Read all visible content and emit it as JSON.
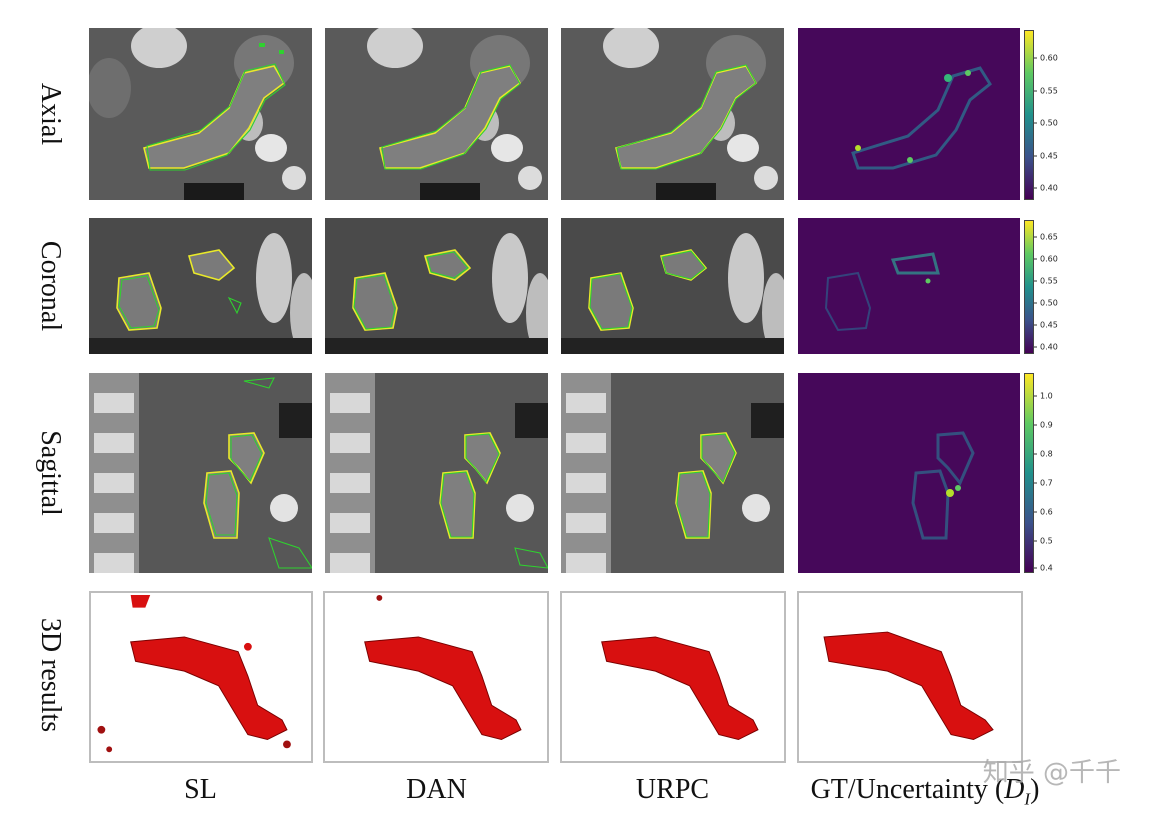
{
  "row_labels": [
    "Axial",
    "Coronal",
    "Sagittal",
    "3D results"
  ],
  "column_labels": [
    "SL",
    "DAN",
    "URPC",
    "GT/Uncertainty ("
  ],
  "uncertainty_symbol": "D",
  "uncertainty_subscript": "I",
  "uncertainty_close": ")",
  "colorbars": [
    {
      "ticks": [
        "0.60",
        "0.55",
        "0.50",
        "0.45",
        "0.40"
      ],
      "min": 0.38,
      "max": 0.645
    },
    {
      "ticks": [
        "0.65",
        "0.60",
        "0.55",
        "0.50",
        "0.45",
        "0.40"
      ],
      "min": 0.38,
      "max": 0.68
    },
    {
      "ticks": [
        "1.0",
        "0.9",
        "0.8",
        "0.7",
        "0.6",
        "0.5",
        "0.4"
      ],
      "min": 0.38,
      "max": 1.07
    }
  ],
  "colors": {
    "ground_truth_contour": "#e9e92a",
    "prediction_contour": "#2fd12f",
    "render_red": "#d81010",
    "heatmap_background": "#46085a"
  },
  "watermark": "知乎 @千千"
}
